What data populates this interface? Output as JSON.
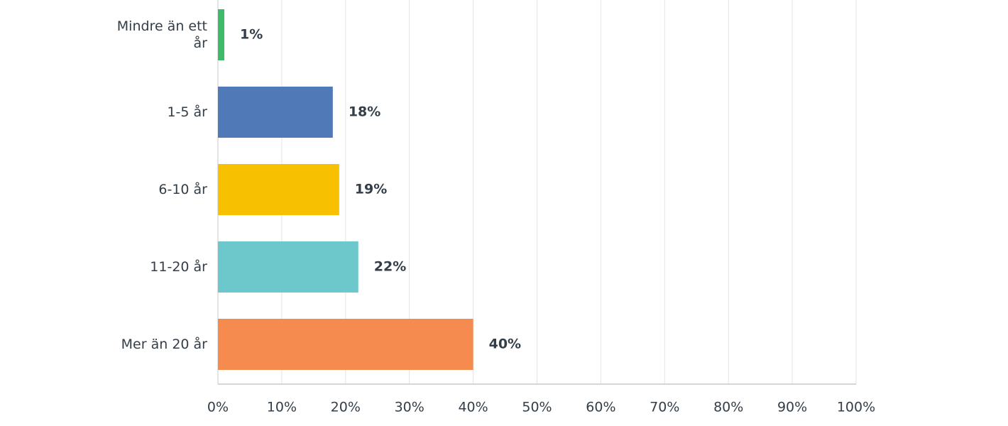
{
  "chart_data": {
    "type": "bar",
    "orientation": "horizontal",
    "categories": [
      "Mindre än ett år",
      "1-5 år",
      "6-10 år",
      "11-20 år",
      "Mer än 20 år"
    ],
    "values": [
      1,
      18,
      19,
      22,
      40
    ],
    "value_labels": [
      "1%",
      "18%",
      "19%",
      "22%",
      "40%"
    ],
    "colors": [
      "#3dba6a",
      "#4f7ab7",
      "#f7c000",
      "#6cc8cb",
      "#f68b50"
    ],
    "xlim": [
      0,
      100
    ],
    "xticks": [
      {
        "value": 0,
        "label": "0%"
      },
      {
        "value": 10,
        "label": "10%"
      },
      {
        "value": 20,
        "label": "20%"
      },
      {
        "value": 30,
        "label": "30%"
      },
      {
        "value": 40,
        "label": "40%"
      },
      {
        "value": 50,
        "label": "50%"
      },
      {
        "value": 60,
        "label": "60%"
      },
      {
        "value": 70,
        "label": "70%"
      },
      {
        "value": 80,
        "label": "80%"
      },
      {
        "value": 90,
        "label": "90%"
      },
      {
        "value": 100,
        "label": "100%"
      }
    ],
    "grid": true
  }
}
